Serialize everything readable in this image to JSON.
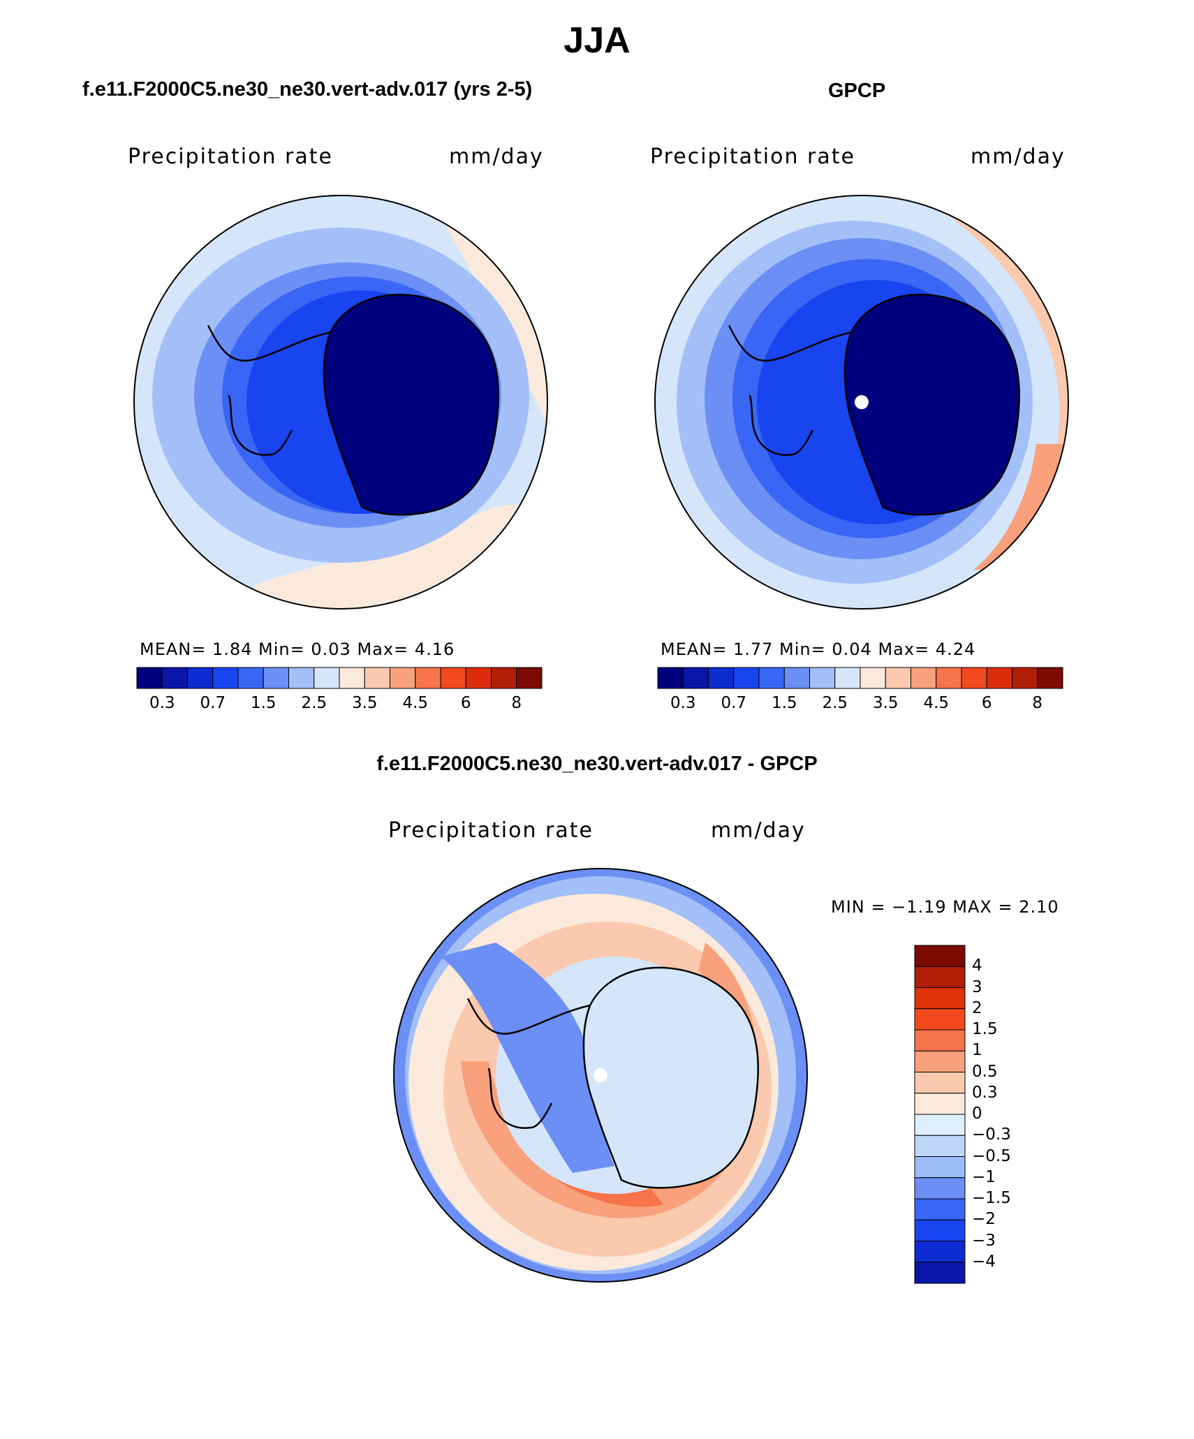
{
  "page": {
    "title": "JJA",
    "diff_title": "f.e11.F2000C5.ne30_ne30.vert-adv.017 - GPCP"
  },
  "panels": [
    {
      "title": "f.e11.F2000C5.ne30_ne30.vert-adv.017 (yrs 2-5)",
      "variable": "Precipitation  rate",
      "units": "mm/day",
      "stats": "MEAN=     1.84   Min=      0.03    Max=      4.16"
    },
    {
      "title": "GPCP",
      "variable": "Precipitation  rate",
      "units": "mm/day",
      "stats": "MEAN=     1.77   Min=      0.04    Max=      4.24"
    }
  ],
  "diff_panel": {
    "variable": "Precipitation  rate",
    "units": "mm/day",
    "stats": "MIN  =   −1.19  MAX  =      2.10"
  },
  "colorbar_top": {
    "colors": [
      "#00007f",
      "#0a16a8",
      "#0d2bd1",
      "#1945f0",
      "#3a66f5",
      "#6b8ff5",
      "#a3bff8",
      "#d5e6fb",
      "#fbeadb",
      "#fbc9ad",
      "#f9a07c",
      "#f7744b",
      "#f2491f",
      "#dc2e0c",
      "#b01e06",
      "#7d0a02"
    ],
    "labels": [
      "0.3",
      "0.7",
      "1.5",
      "2.5",
      "3.5",
      "4.5",
      "6",
      "8"
    ]
  },
  "colorbar_diff": {
    "colors": [
      "#7d0a02",
      "#b01e06",
      "#e0330c",
      "#f24a1c",
      "#f7744b",
      "#f9a07c",
      "#fbc9ad",
      "#fbeadb",
      "#ddeefc",
      "#c0d5fa",
      "#9dbbf7",
      "#6b8ff5",
      "#3a66f5",
      "#1945f0",
      "#0d2bd1",
      "#0a16a8"
    ],
    "labels": [
      "4",
      "3",
      "2",
      "1.5",
      "1",
      "0.5",
      "0.3",
      "0",
      "−0.3",
      "−0.5",
      "−1",
      "−1.5",
      "−2",
      "−3",
      "−4"
    ]
  },
  "map_colors": {
    "land_model": "#00007f",
    "land_gpcp": "#00007f",
    "diff_land": "#d5e6fb",
    "ocean_near_model": "#1945f0",
    "ocean_mid_model": "#6b8ff5",
    "ocean_far_model": "#d5e6fb",
    "ocean_edge_pos": "#fbeadb",
    "ocean_pos_strong": "#f9a07c",
    "diff_ring_pos": "#fbc9ad",
    "diff_ring_strong": "#f7744b",
    "diff_edge_neg": "#6b8ff5",
    "coast": "#000000"
  }
}
